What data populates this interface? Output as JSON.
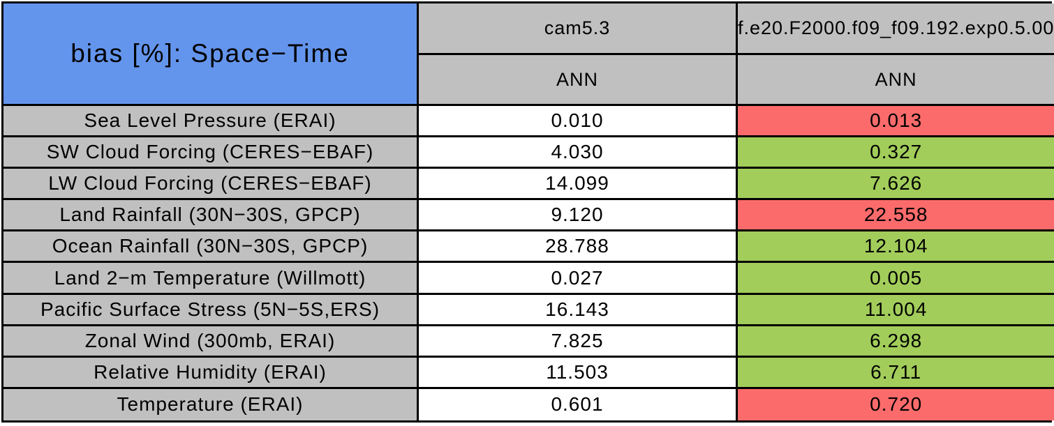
{
  "table": {
    "title": "bias [%]: Space−Time",
    "header": {
      "models": [
        "cam5.3",
        "f.e20.F2000.f09_f09.192.exp0.5.00"
      ],
      "seasons": [
        "ANN",
        "ANN"
      ]
    },
    "rows": [
      {
        "label": "Sea Level Pressure (ERAI)",
        "v1": "0.010",
        "v2": "0.013",
        "status": "red"
      },
      {
        "label": "SW Cloud Forcing (CERES−EBAF)",
        "v1": "4.030",
        "v2": "0.327",
        "status": "green"
      },
      {
        "label": "LW Cloud Forcing (CERES−EBAF)",
        "v1": "14.099",
        "v2": "7.626",
        "status": "green"
      },
      {
        "label": "Land Rainfall (30N−30S, GPCP)",
        "v1": "9.120",
        "v2": "22.558",
        "status": "red"
      },
      {
        "label": "Ocean Rainfall (30N−30S, GPCP)",
        "v1": "28.788",
        "v2": "12.104",
        "status": "green"
      },
      {
        "label": "Land 2−m Temperature (Willmott)",
        "v1": "0.027",
        "v2": "0.005",
        "status": "green"
      },
      {
        "label": "Pacific Surface Stress (5N−5S,ERS)",
        "v1": "16.143",
        "v2": "11.004",
        "status": "green"
      },
      {
        "label": "Zonal Wind (300mb, ERAI)",
        "v1": "7.825",
        "v2": "6.298",
        "status": "green"
      },
      {
        "label": "Relative Humidity (ERAI)",
        "v1": "11.503",
        "v2": "6.711",
        "status": "green"
      },
      {
        "label": "Temperature (ERAI)",
        "v1": "0.601",
        "v2": "0.720",
        "status": "red"
      }
    ]
  },
  "colors": {
    "blue": "#6495ED",
    "gray": "#C0C0C0",
    "red": "#FB6B6B",
    "green": "#A2CD5A",
    "white": "#FFFFFF"
  },
  "chart_data": {
    "type": "table",
    "title": "bias [%]: Space−Time",
    "categories": [
      "Sea Level Pressure (ERAI)",
      "SW Cloud Forcing (CERES−EBAF)",
      "LW Cloud Forcing (CERES−EBAF)",
      "Land Rainfall (30N−30S, GPCP)",
      "Ocean Rainfall (30N−30S, GPCP)",
      "Land 2−m Temperature (Willmott)",
      "Pacific Surface Stress (5N−5S,ERS)",
      "Zonal Wind (300mb, ERAI)",
      "Relative Humidity (ERAI)",
      "Temperature (ERAI)"
    ],
    "series": [
      {
        "name": "cam5.3",
        "season": "ANN",
        "values": [
          0.01,
          4.03,
          14.099,
          9.12,
          28.788,
          0.027,
          16.143,
          7.825,
          11.503,
          0.601
        ],
        "cell_colors": [
          "white",
          "white",
          "white",
          "white",
          "white",
          "white",
          "white",
          "white",
          "white",
          "white"
        ]
      },
      {
        "name": "f.e20.F2000.f09_f09.192.exp0.5.00",
        "season": "ANN",
        "values": [
          0.013,
          0.327,
          7.626,
          22.558,
          12.104,
          0.005,
          11.004,
          6.298,
          6.711,
          0.72
        ],
        "cell_colors": [
          "red",
          "green",
          "green",
          "red",
          "green",
          "green",
          "green",
          "green",
          "green",
          "red"
        ]
      }
    ],
    "layout": {
      "header_bg": "#C0C0C0",
      "title_bg": "#6495ED",
      "grid": true
    }
  }
}
